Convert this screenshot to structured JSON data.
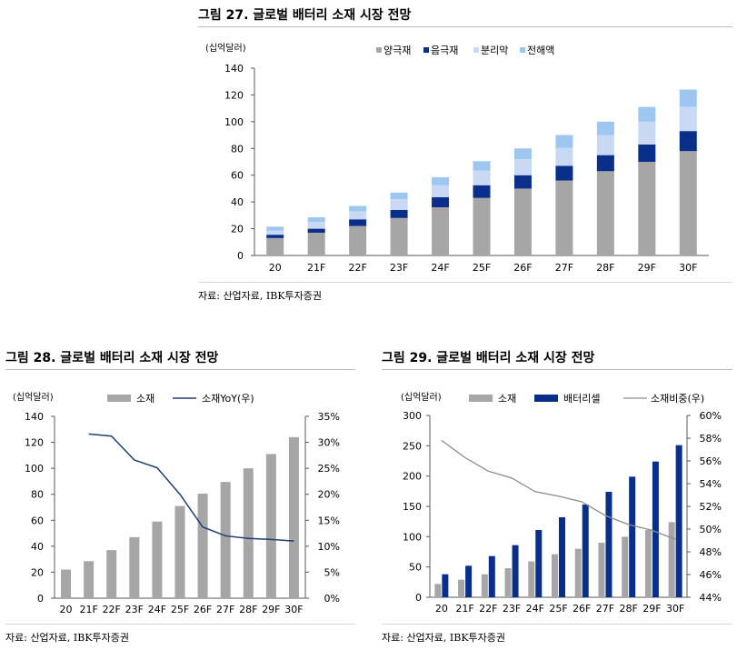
{
  "figures": [
    {
      "title": "그림 27. 글로벌 배터리 소재 시장 전망",
      "source": "자료: 산업자료, IBK투자증권"
    },
    {
      "title": "그림 28. 글로벌 배터리 소재 시장 전망",
      "source": "자료: 산업자료, IBK투자증권"
    },
    {
      "title": "그림 29. 글로벌 배터리 소재 시장 전망",
      "source": "자료: 산업자료, IBK투자증권"
    }
  ],
  "colors": {
    "cathode": "#a6a6a6",
    "anode": "#0a2f8a",
    "separator": "#c9d9f4",
    "electrolyte": "#9dc6f0",
    "materials": "#a6a6a6",
    "battery_cell": "#0a2f8a",
    "yoy_line": "#1f3f73",
    "share_line": "#8c8c8c"
  },
  "chart_data": [
    {
      "type": "bar",
      "stacked": true,
      "ylabel": "(십억달러)",
      "ylim": [
        0,
        140
      ],
      "yticks": [
        "0",
        "20",
        "40",
        "60",
        "80",
        "100",
        "120",
        "140"
      ],
      "categories": [
        "20",
        "21F",
        "22F",
        "23F",
        "24F",
        "25F",
        "26F",
        "27F",
        "28F",
        "29F",
        "30F"
      ],
      "legend_position": "top-right",
      "series": [
        {
          "name": "양극재",
          "color_key": "cathode",
          "values": [
            13,
            17,
            22,
            28,
            36,
            43,
            50,
            56,
            63,
            70,
            78
          ]
        },
        {
          "name": "음극재",
          "color_key": "anode",
          "values": [
            2.5,
            3,
            5,
            6,
            7.5,
            9.5,
            10,
            11,
            12,
            13,
            15
          ]
        },
        {
          "name": "분리막",
          "color_key": "separator",
          "values": [
            3,
            5,
            6,
            8,
            9,
            11,
            12,
            13.5,
            15,
            17,
            18
          ]
        },
        {
          "name": "전해액",
          "color_key": "electrolyte",
          "values": [
            3,
            3.5,
            4,
            5,
            6,
            7,
            8,
            9.5,
            10,
            11,
            13
          ]
        }
      ]
    },
    {
      "type": "bar+line",
      "ylabel": "(십억달러)",
      "ylim": [
        0,
        140
      ],
      "yticks": [
        "0",
        "20",
        "40",
        "60",
        "80",
        "100",
        "120",
        "140"
      ],
      "y2lim": [
        0,
        35
      ],
      "y2ticks": [
        "0%",
        "5%",
        "10%",
        "15%",
        "20%",
        "25%",
        "30%",
        "35%"
      ],
      "categories": [
        "20",
        "21F",
        "22F",
        "23F",
        "24F",
        "25F",
        "26F",
        "27F",
        "28F",
        "29F",
        "30F"
      ],
      "legend_position": "top",
      "bar_series": {
        "name": "소재",
        "color_key": "materials",
        "values": [
          22,
          28.5,
          37,
          47,
          59,
          71,
          80.5,
          89.5,
          100,
          111,
          124
        ]
      },
      "line_series": {
        "name": "소재YoY(우)",
        "color_key": "yoy_line",
        "values": [
          null,
          31.6,
          31.2,
          26.6,
          25.1,
          20,
          13.7,
          12,
          11.5,
          11.3,
          11
        ]
      }
    },
    {
      "type": "bar+line",
      "ylabel": "(십억달러)",
      "ylim": [
        0,
        300
      ],
      "yticks": [
        "0",
        "50",
        "100",
        "150",
        "200",
        "250",
        "300"
      ],
      "y2lim": [
        44,
        60
      ],
      "y2ticks": [
        "44%",
        "46%",
        "48%",
        "50%",
        "52%",
        "54%",
        "56%",
        "58%",
        "60%"
      ],
      "categories": [
        "20",
        "21F",
        "22F",
        "23F",
        "24F",
        "25F",
        "26F",
        "27F",
        "28F",
        "29F",
        "30F"
      ],
      "legend_position": "top",
      "bar_series": [
        {
          "name": "소재",
          "color_key": "materials",
          "values": [
            22,
            29,
            38,
            48,
            59,
            71,
            80,
            90,
            100,
            111,
            124
          ]
        },
        {
          "name": "배터리셀",
          "color_key": "battery_cell",
          "values": [
            38,
            52,
            68,
            86,
            111,
            132,
            153,
            174,
            199,
            224,
            251
          ]
        }
      ],
      "line_series": {
        "name": "소재비중(우)",
        "color_key": "share_line",
        "values": [
          57.8,
          56.3,
          55.1,
          54.5,
          53.3,
          52.9,
          52.4,
          51.2,
          50.4,
          49.9,
          49.1
        ]
      }
    }
  ]
}
